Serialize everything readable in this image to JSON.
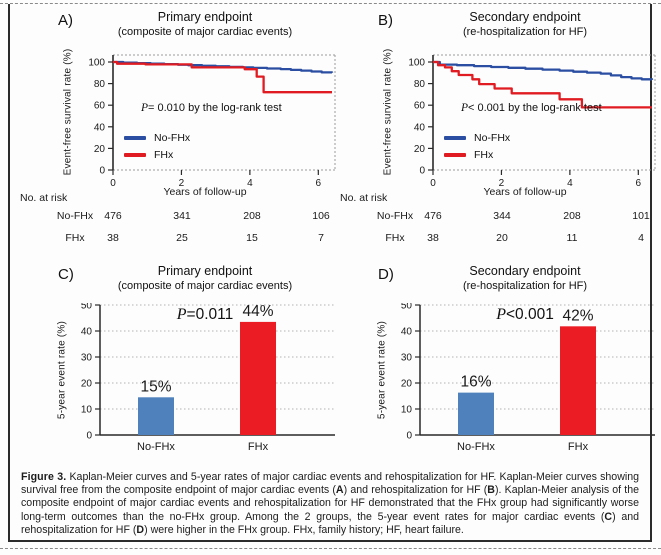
{
  "colors": {
    "km_blue": "#2b4ea2",
    "km_red": "#e01b21",
    "bar_blue": "#4f81bd",
    "bar_red": "#eb1c24",
    "grid": "#b3b3b3",
    "axis": "#2a2a2a",
    "frame_dotted": "#9a9a9a"
  },
  "chart_data": [
    {
      "id": "A",
      "letter": "A)",
      "type": "line",
      "subtype": "kaplan-meier-step",
      "title": "Primary endpoint",
      "subtitle": "(composite of major cardiac events)",
      "xlabel": "Years of follow-up",
      "ylabel": "Event-free  survival  rate (%)",
      "xlim": [
        0,
        6.4
      ],
      "ylim": [
        0,
        106
      ],
      "xticks": [
        0,
        2,
        4,
        6
      ],
      "yticks": [
        0,
        20,
        40,
        60,
        80,
        100
      ],
      "grid": false,
      "legend_position": "lower-left",
      "p_label": "P",
      "p_rest": "= 0.010 by the log-rank test",
      "legend": [
        {
          "name": "No-FHx",
          "color_key": "km_blue"
        },
        {
          "name": "FHx",
          "color_key": "km_red"
        }
      ],
      "series": [
        {
          "name": "No-FHx",
          "color_key": "km_blue",
          "points": [
            [
              0,
              100
            ],
            [
              0.3,
              99.4
            ],
            [
              0.7,
              99
            ],
            [
              1.1,
              98.4
            ],
            [
              1.5,
              98
            ],
            [
              1.9,
              97.5
            ],
            [
              2.2,
              97
            ],
            [
              2.6,
              96.5
            ],
            [
              3.0,
              96
            ],
            [
              3.4,
              95.5
            ],
            [
              3.8,
              95
            ],
            [
              4.1,
              94.5
            ],
            [
              4.5,
              94
            ],
            [
              4.9,
              93.4
            ],
            [
              5.2,
              92.7
            ],
            [
              5.5,
              92
            ],
            [
              5.8,
              91.2
            ],
            [
              6.1,
              90.4
            ],
            [
              6.4,
              90
            ]
          ]
        },
        {
          "name": "FHx",
          "color_key": "km_red",
          "points": [
            [
              0,
              100
            ],
            [
              0.12,
              98.4
            ],
            [
              0.95,
              97.8
            ],
            [
              2.3,
              95
            ],
            [
              3.85,
              93.3
            ],
            [
              4.2,
              86.5
            ],
            [
              4.4,
              72
            ],
            [
              6.4,
              72
            ]
          ]
        }
      ],
      "risk_table": {
        "label": "No. at risk",
        "timepoints": [
          0,
          2,
          4,
          6
        ],
        "rows": [
          {
            "name": "No-FHx",
            "values": [
              "476",
              "341",
              "208",
              "106"
            ]
          },
          {
            "name": "FHx",
            "values": [
              "38",
              "25",
              "15",
              "7"
            ]
          }
        ]
      }
    },
    {
      "id": "B",
      "letter": "B)",
      "type": "line",
      "subtype": "kaplan-meier-step",
      "title": "Secondary endpoint",
      "subtitle": "(re-hospitalization for HF)",
      "xlabel": "Years of follow-up",
      "ylabel": "Event-free  survival  rate (%)",
      "xlim": [
        0,
        6.4
      ],
      "ylim": [
        0,
        106
      ],
      "xticks": [
        0,
        2,
        4,
        6
      ],
      "yticks": [
        0,
        20,
        40,
        60,
        80,
        100
      ],
      "grid": false,
      "legend_position": "lower-left",
      "p_label": "P",
      "p_rest": "< 0.001 by the log-rank test",
      "legend": [
        {
          "name": "No-FHx",
          "color_key": "km_blue"
        },
        {
          "name": "FHx",
          "color_key": "km_red"
        }
      ],
      "series": [
        {
          "name": "No-FHx",
          "color_key": "km_blue",
          "points": [
            [
              0,
              100
            ],
            [
              0.2,
              97.6
            ],
            [
              0.7,
              97
            ],
            [
              1.2,
              96.2
            ],
            [
              1.7,
              95.4
            ],
            [
              2.2,
              94.6
            ],
            [
              2.7,
              93.8
            ],
            [
              3.2,
              93
            ],
            [
              3.7,
              92
            ],
            [
              4.1,
              91
            ],
            [
              4.5,
              90.2
            ],
            [
              4.9,
              89.3
            ],
            [
              5.2,
              87.6
            ],
            [
              5.5,
              86
            ],
            [
              5.8,
              84.8
            ],
            [
              6.1,
              84
            ],
            [
              6.4,
              83.4
            ]
          ]
        },
        {
          "name": "FHx",
          "color_key": "km_red",
          "points": [
            [
              0,
              100
            ],
            [
              0.15,
              97
            ],
            [
              0.35,
              95
            ],
            [
              0.55,
              91.5
            ],
            [
              0.75,
              88
            ],
            [
              1.15,
              84
            ],
            [
              1.35,
              79.5
            ],
            [
              1.8,
              75.5
            ],
            [
              2.3,
              71
            ],
            [
              3.7,
              65.5
            ],
            [
              4.35,
              58
            ],
            [
              6.4,
              58
            ]
          ]
        }
      ],
      "risk_table": {
        "label": "No. at risk",
        "timepoints": [
          0,
          2,
          4,
          6
        ],
        "rows": [
          {
            "name": "No-FHx",
            "values": [
              "476",
              "344",
              "208",
              "101"
            ]
          },
          {
            "name": "FHx",
            "values": [
              "38",
              "20",
              "11",
              "4"
            ]
          }
        ]
      }
    },
    {
      "id": "C",
      "letter": "C)",
      "type": "bar",
      "title": "Primary endpoint",
      "subtitle": "(composite of major cardiac events)",
      "ylabel": "5-year event  rate (%)",
      "ylim": [
        0,
        50
      ],
      "yticks": [
        0,
        10,
        20,
        30,
        40,
        50
      ],
      "grid": true,
      "categories": [
        "No-FHx",
        "FHx"
      ],
      "values": [
        14.5,
        43.5
      ],
      "value_labels": [
        "15%",
        "44%"
      ],
      "bar_color_keys": [
        "bar_blue",
        "bar_red"
      ],
      "p_label": "P",
      "p_rest": "=0.011"
    },
    {
      "id": "D",
      "letter": "D)",
      "type": "bar",
      "title": "Secondary endpoint",
      "subtitle": "(re-hospitalization for HF)",
      "ylabel": "5-year event  rate (%)",
      "ylim": [
        0,
        50
      ],
      "yticks": [
        0,
        10,
        20,
        30,
        40,
        50
      ],
      "grid": true,
      "categories": [
        "No-FHx",
        "FHx"
      ],
      "values": [
        16.3,
        41.8
      ],
      "value_labels": [
        "16%",
        "42%"
      ],
      "bar_color_keys": [
        "bar_blue",
        "bar_red"
      ],
      "p_label": "P",
      "p_rest": "<0.001"
    }
  ],
  "figure": {
    "caption_parts": [
      {
        "t": "Figure 3.",
        "b": true
      },
      {
        "t": "  Kaplan-Meier curves and 5-year rates of major cardiac events and rehospitalization for HF. Kaplan-Meier curves showing survival free from the composite endpoint of major cardiac events (",
        "b": false
      },
      {
        "t": "A",
        "b": true
      },
      {
        "t": ") and rehospitalization for HF (",
        "b": false
      },
      {
        "t": "B",
        "b": true
      },
      {
        "t": "). Kaplan-Meier analysis of the composite endpoint of major cardiac events and rehospitalization for HF demonstrated that the FHx group had significantly worse long-term outcomes than the no-FHx group. Among the 2 groups, the 5-year event rates for major cardiac events (",
        "b": false
      },
      {
        "t": "C",
        "b": true
      },
      {
        "t": ") and rehospitalization for HF (",
        "b": false
      },
      {
        "t": "D",
        "b": true
      },
      {
        "t": ") were higher in the FHx group. FHx, family history; HF, heart failure.",
        "b": false
      }
    ]
  }
}
